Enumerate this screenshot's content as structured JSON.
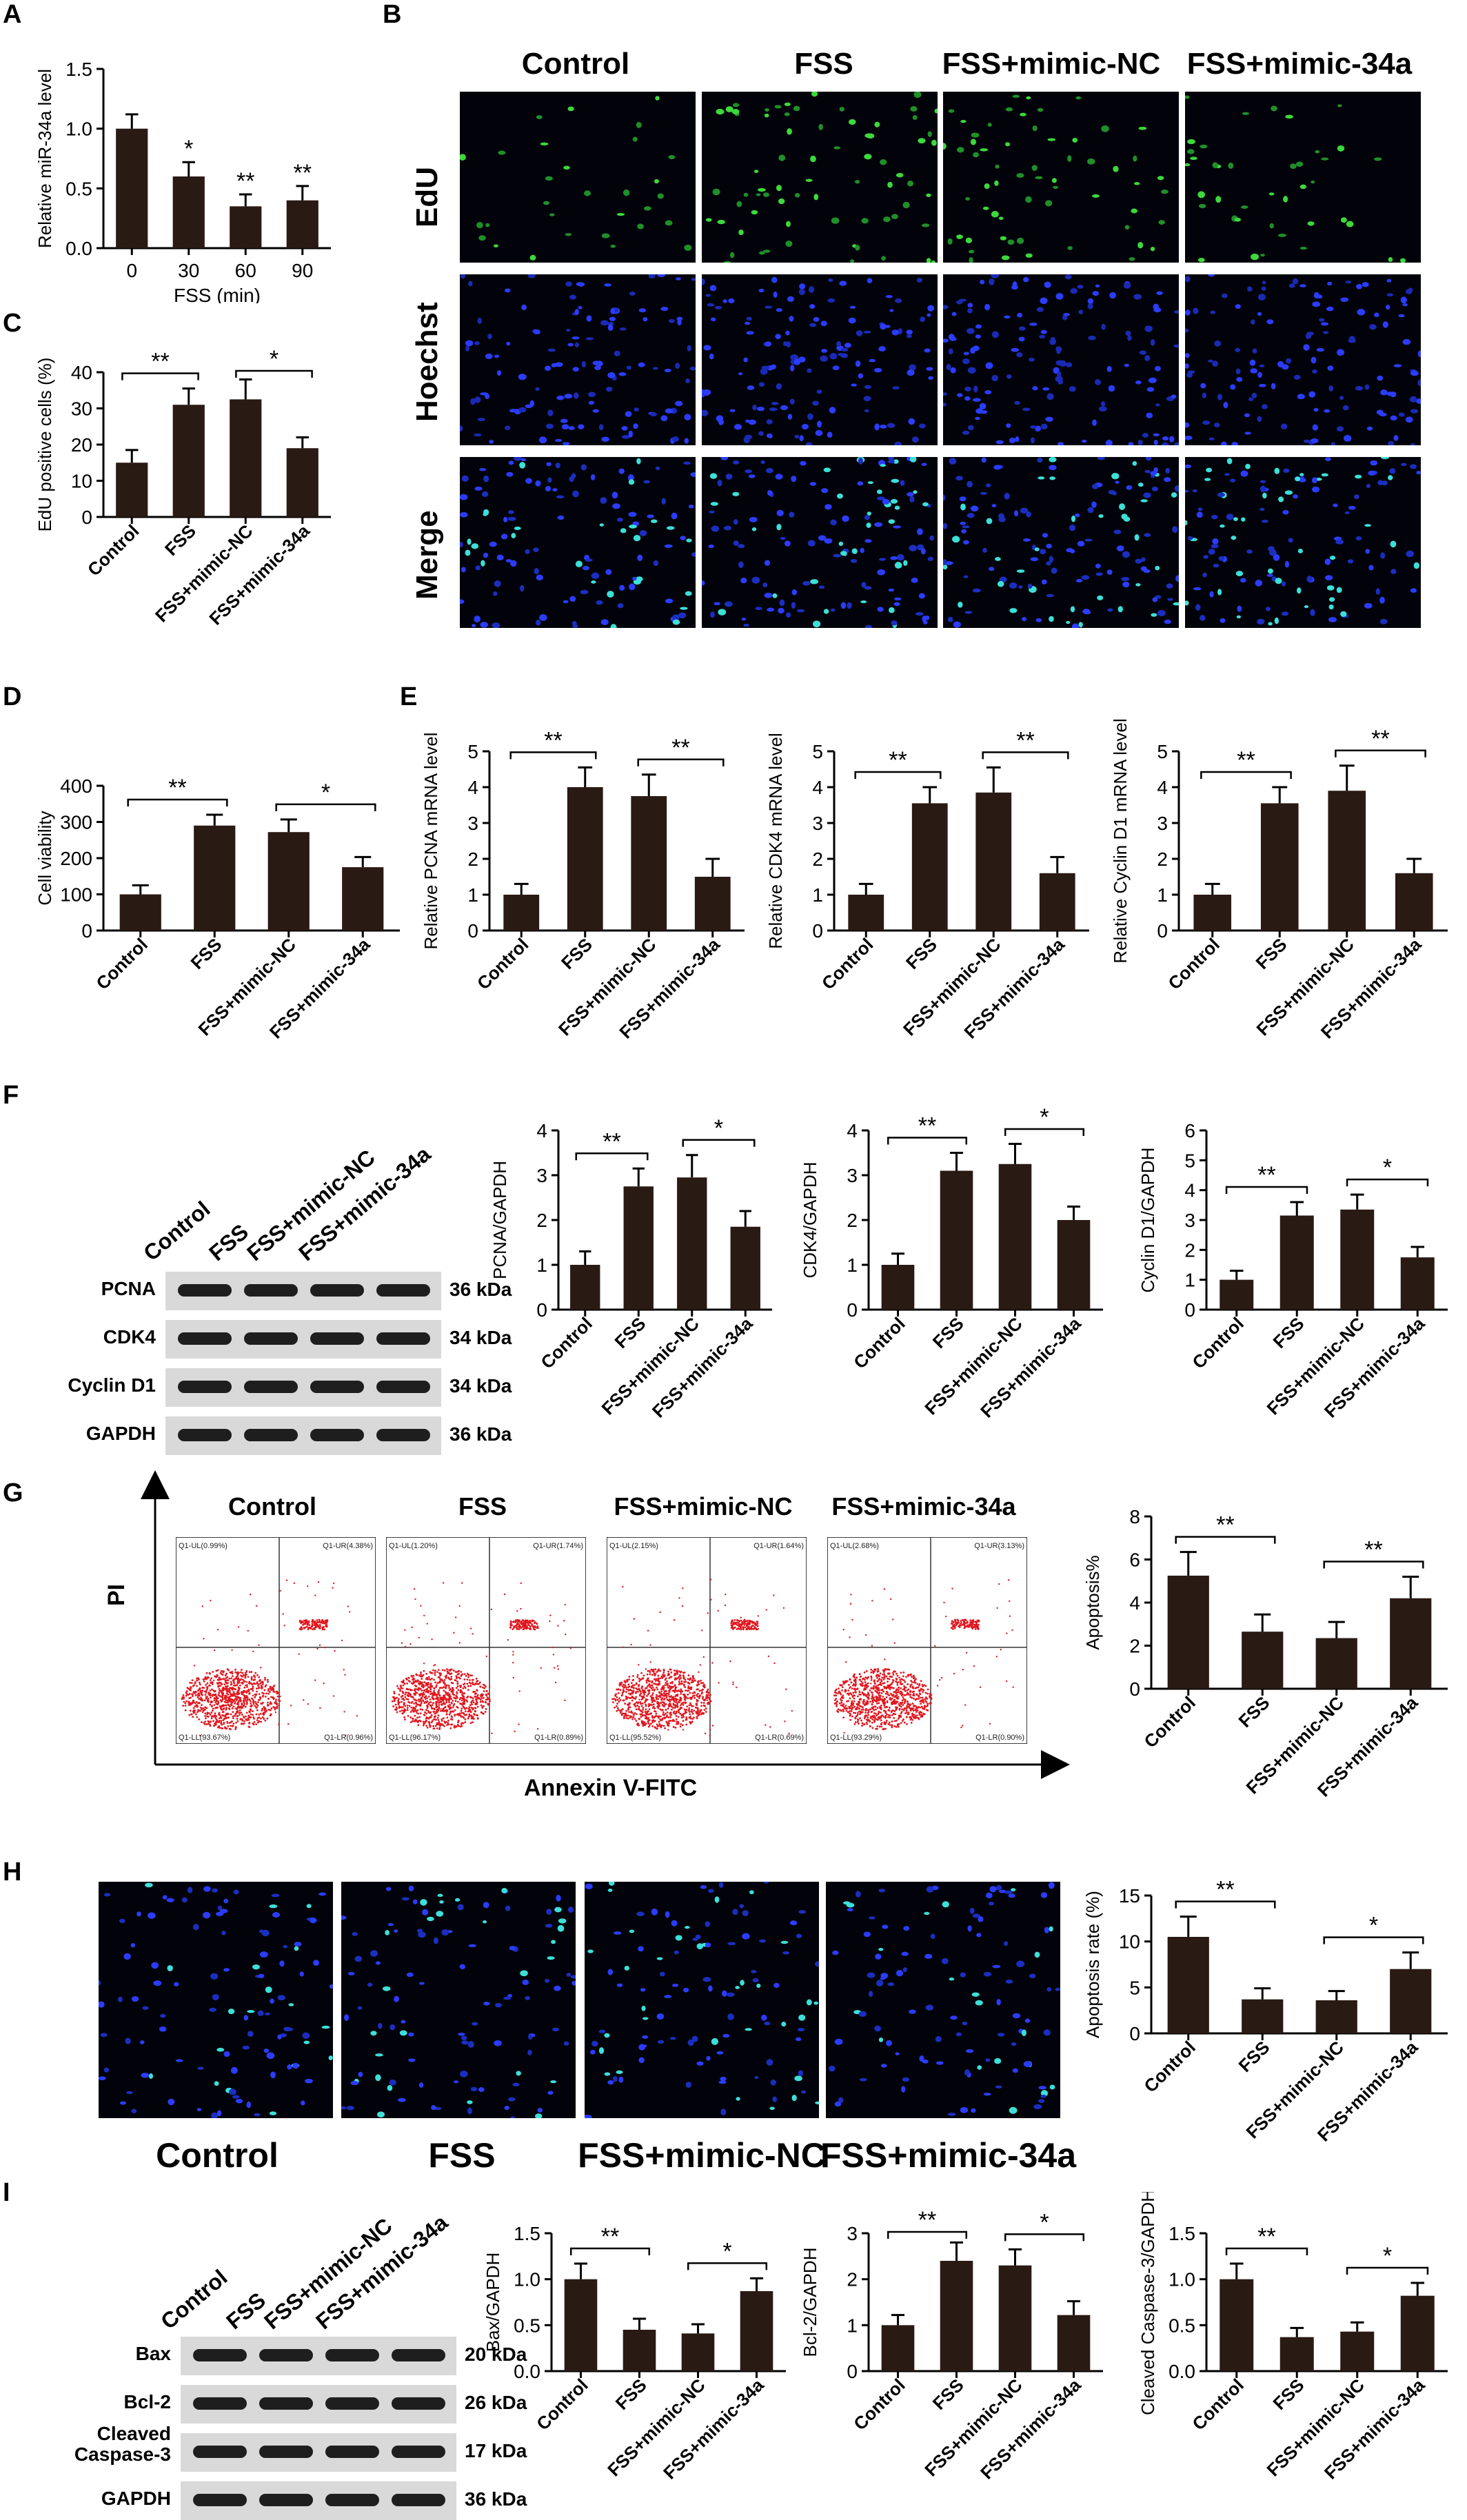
{
  "panels": {
    "A": "A",
    "B": "B",
    "C": "C",
    "D": "D",
    "E": "E",
    "F": "F",
    "G": "G",
    "H": "H",
    "I": "I"
  },
  "groups": [
    "Control",
    "FSS",
    "FSS+mimic-NC",
    "FSS+mimic-34a"
  ],
  "imaging_rows": [
    "EdU",
    "Hoechst",
    "Merge"
  ],
  "flow": {
    "x_axis": "Annexin V-FITC",
    "y_axis": "PI",
    "quadrants": [
      {
        "ul": "Q1-UL(0.99%)",
        "ur": "Q1-UR(4.38%)",
        "ll": "Q1-LL(93.67%)",
        "lr": "Q1-LR(0.96%)"
      },
      {
        "ul": "Q1-UL(1.20%)",
        "ur": "Q1-UR(1.74%)",
        "ll": "Q1-LL(96.17%)",
        "lr": "Q1-LR(0.89%)"
      },
      {
        "ul": "Q1-UL(2.15%)",
        "ur": "Q1-UR(1.64%)",
        "ll": "Q1-LL(95.52%)",
        "lr": "Q1-LR(0.69%)"
      },
      {
        "ul": "Q1-UL(2.68%)",
        "ur": "Q1-UR(3.13%)",
        "ll": "Q1-LL(93.29%)",
        "lr": "Q1-LR(0.90%)"
      }
    ]
  },
  "blots": {
    "F": [
      {
        "name": "PCNA",
        "kda": "36 kDa"
      },
      {
        "name": "CDK4",
        "kda": "34 kDa"
      },
      {
        "name": "Cyclin D1",
        "kda": "34 kDa"
      },
      {
        "name": "GAPDH",
        "kda": "36 kDa"
      }
    ],
    "I": [
      {
        "name": "Bax",
        "kda": "20 kDa"
      },
      {
        "name": "Bcl-2",
        "kda": "26 kDa"
      },
      {
        "name": "Cleaved\nCaspase-3",
        "kda": "17 kDa"
      },
      {
        "name": "GAPDH",
        "kda": "36 kDa"
      }
    ]
  },
  "chart_data": [
    {
      "id": "A",
      "type": "bar",
      "categories": [
        "0",
        "30",
        "60",
        "90"
      ],
      "values": [
        1.0,
        0.6,
        0.35,
        0.4
      ],
      "errors": [
        0.12,
        0.12,
        0.1,
        0.12
      ],
      "xlabel": "FSS (min)",
      "ylabel": "Relative miR-34a level",
      "ylim": [
        0,
        1.5
      ],
      "yticks": [
        "0.0",
        "0.5",
        "1.0",
        "1.5"
      ],
      "stars": [
        {
          "i": 1,
          "t": "*"
        },
        {
          "i": 2,
          "t": "**"
        },
        {
          "i": 3,
          "t": "**"
        }
      ],
      "brackets": []
    },
    {
      "id": "C",
      "type": "bar",
      "categories": [
        "Control",
        "FSS",
        "FSS+mimic-NC",
        "FSS+mimic-34a"
      ],
      "values": [
        15,
        31,
        32.5,
        19
      ],
      "errors": [
        3.5,
        4.5,
        5.5,
        3
      ],
      "xlabel": "",
      "ylabel": "EdU positive cells (%)",
      "ylim": [
        0,
        40
      ],
      "yticks": [
        "0",
        "10",
        "20",
        "30",
        "40"
      ],
      "stars": [],
      "brackets": [
        {
          "a": 0,
          "b": 1,
          "t": "**"
        },
        {
          "a": 2,
          "b": 3,
          "t": "*"
        }
      ]
    },
    {
      "id": "D",
      "type": "bar",
      "categories": [
        "Control",
        "FSS",
        "FSS+mimic-NC",
        "FSS+mimic-34a"
      ],
      "values": [
        100,
        290,
        272,
        175
      ],
      "errors": [
        25,
        30,
        35,
        28
      ],
      "xlabel": "",
      "ylabel": "Cell viability",
      "ylim": [
        0,
        400
      ],
      "yticks": [
        "0",
        "100",
        "200",
        "300",
        "400"
      ],
      "stars": [],
      "brackets": [
        {
          "a": 0,
          "b": 1,
          "t": "**"
        },
        {
          "a": 2,
          "b": 3,
          "t": "*"
        }
      ]
    },
    {
      "id": "E1",
      "type": "bar",
      "categories": [
        "Control",
        "FSS",
        "FSS+mimic-NC",
        "FSS+mimic-34a"
      ],
      "values": [
        1.0,
        4.0,
        3.75,
        1.5
      ],
      "errors": [
        0.3,
        0.55,
        0.6,
        0.5
      ],
      "xlabel": "",
      "ylabel": "Relative PCNA mRNA level",
      "ylim": [
        0,
        5
      ],
      "yticks": [
        "0",
        "1",
        "2",
        "3",
        "4",
        "5"
      ],
      "stars": [],
      "brackets": [
        {
          "a": 0,
          "b": 1,
          "t": "**"
        },
        {
          "a": 2,
          "b": 3,
          "t": "**"
        }
      ]
    },
    {
      "id": "E2",
      "type": "bar",
      "categories": [
        "Control",
        "FSS",
        "FSS+mimic-NC",
        "FSS+mimic-34a"
      ],
      "values": [
        1.0,
        3.55,
        3.85,
        1.6
      ],
      "errors": [
        0.3,
        0.45,
        0.7,
        0.45
      ],
      "xlabel": "",
      "ylabel": "Relative CDK4 mRNA level",
      "ylim": [
        0,
        5
      ],
      "yticks": [
        "0",
        "1",
        "2",
        "3",
        "4",
        "5"
      ],
      "stars": [],
      "brackets": [
        {
          "a": 0,
          "b": 1,
          "t": "**"
        },
        {
          "a": 2,
          "b": 3,
          "t": "**"
        }
      ]
    },
    {
      "id": "E3",
      "type": "bar",
      "categories": [
        "Control",
        "FSS",
        "FSS+mimic-NC",
        "FSS+mimic-34a"
      ],
      "values": [
        1.0,
        3.55,
        3.9,
        1.6
      ],
      "errors": [
        0.3,
        0.45,
        0.7,
        0.4
      ],
      "xlabel": "",
      "ylabel": "Relative Cyclin D1 mRNA level",
      "ylim": [
        0,
        5
      ],
      "yticks": [
        "0",
        "1",
        "2",
        "3",
        "4",
        "5"
      ],
      "stars": [],
      "brackets": [
        {
          "a": 0,
          "b": 1,
          "t": "**"
        },
        {
          "a": 2,
          "b": 3,
          "t": "**"
        }
      ]
    },
    {
      "id": "F1",
      "type": "bar",
      "categories": [
        "Control",
        "FSS",
        "FSS+mimic-NC",
        "FSS+mimic-34a"
      ],
      "values": [
        1.0,
        2.75,
        2.95,
        1.85
      ],
      "errors": [
        0.3,
        0.4,
        0.5,
        0.35
      ],
      "xlabel": "",
      "ylabel": "PCNA/GAPDH",
      "ylim": [
        0,
        4
      ],
      "yticks": [
        "0",
        "1",
        "2",
        "3",
        "4"
      ],
      "stars": [],
      "brackets": [
        {
          "a": 0,
          "b": 1,
          "t": "**"
        },
        {
          "a": 2,
          "b": 3,
          "t": "*"
        }
      ]
    },
    {
      "id": "F2",
      "type": "bar",
      "categories": [
        "Control",
        "FSS",
        "FSS+mimic-NC",
        "FSS+mimic-34a"
      ],
      "values": [
        1.0,
        3.1,
        3.25,
        2.0
      ],
      "errors": [
        0.25,
        0.4,
        0.45,
        0.3
      ],
      "xlabel": "",
      "ylabel": "CDK4/GAPDH",
      "ylim": [
        0,
        4
      ],
      "yticks": [
        "0",
        "1",
        "2",
        "3",
        "4"
      ],
      "stars": [],
      "brackets": [
        {
          "a": 0,
          "b": 1,
          "t": "**"
        },
        {
          "a": 2,
          "b": 3,
          "t": "*"
        }
      ]
    },
    {
      "id": "F3",
      "type": "bar",
      "categories": [
        "Control",
        "FSS",
        "FSS+mimic-NC",
        "FSS+mimic-34a"
      ],
      "values": [
        1.0,
        3.15,
        3.35,
        1.75
      ],
      "errors": [
        0.3,
        0.45,
        0.5,
        0.35
      ],
      "xlabel": "",
      "ylabel": "Cyclin D1/GAPDH",
      "ylim": [
        0,
        6
      ],
      "yticks": [
        "0",
        "1",
        "2",
        "3",
        "4",
        "5",
        "6"
      ],
      "stars": [],
      "brackets": [
        {
          "a": 0,
          "b": 1,
          "t": "**"
        },
        {
          "a": 2,
          "b": 3,
          "t": "*"
        }
      ]
    },
    {
      "id": "G",
      "type": "bar",
      "categories": [
        "Control",
        "FSS",
        "FSS+mimic-NC",
        "FSS+mimic-34a"
      ],
      "values": [
        5.25,
        2.65,
        2.35,
        4.2
      ],
      "errors": [
        1.1,
        0.8,
        0.75,
        1.0
      ],
      "xlabel": "",
      "ylabel": "Apoptosis%",
      "ylim": [
        0,
        8
      ],
      "yticks": [
        "0",
        "2",
        "4",
        "6",
        "8"
      ],
      "stars": [],
      "brackets": [
        {
          "a": 0,
          "b": 1,
          "t": "**"
        },
        {
          "a": 2,
          "b": 3,
          "t": "**"
        }
      ]
    },
    {
      "id": "H",
      "type": "bar",
      "categories": [
        "Control",
        "FSS",
        "FSS+mimic-NC",
        "FSS+mimic-34a"
      ],
      "values": [
        10.5,
        3.7,
        3.6,
        7.0
      ],
      "errors": [
        2.2,
        1.2,
        1.0,
        1.8
      ],
      "xlabel": "",
      "ylabel": "Apoptosis rate (%)",
      "ylim": [
        0,
        15
      ],
      "yticks": [
        "0",
        "5",
        "10",
        "15"
      ],
      "stars": [],
      "brackets": [
        {
          "a": 0,
          "b": 1,
          "t": "**"
        },
        {
          "a": 2,
          "b": 3,
          "t": "*"
        }
      ]
    },
    {
      "id": "I1",
      "type": "bar",
      "categories": [
        "Control",
        "FSS",
        "FSS+mimic-NC",
        "FSS+mimic-34a"
      ],
      "values": [
        1.0,
        0.45,
        0.41,
        0.87
      ],
      "errors": [
        0.17,
        0.12,
        0.1,
        0.14
      ],
      "xlabel": "",
      "ylabel": "Bax/GAPDH",
      "ylim": [
        0,
        1.5
      ],
      "yticks": [
        "0.0",
        "0.5",
        "1.0",
        "1.5"
      ],
      "stars": [],
      "brackets": [
        {
          "a": 0,
          "b": 1,
          "t": "**"
        },
        {
          "a": 2,
          "b": 3,
          "t": "*"
        }
      ]
    },
    {
      "id": "I2",
      "type": "bar",
      "categories": [
        "Control",
        "FSS",
        "FSS+mimic-NC",
        "FSS+mimic-34a"
      ],
      "values": [
        1.0,
        2.4,
        2.3,
        1.22
      ],
      "errors": [
        0.22,
        0.4,
        0.35,
        0.3
      ],
      "xlabel": "",
      "ylabel": "Bcl-2/GAPDH",
      "ylim": [
        0,
        3
      ],
      "yticks": [
        "0",
        "1",
        "2",
        "3"
      ],
      "stars": [],
      "brackets": [
        {
          "a": 0,
          "b": 1,
          "t": "**"
        },
        {
          "a": 2,
          "b": 3,
          "t": "*"
        }
      ]
    },
    {
      "id": "I3",
      "type": "bar",
      "categories": [
        "Control",
        "FSS",
        "FSS+mimic-NC",
        "FSS+mimic-34a"
      ],
      "values": [
        1.0,
        0.37,
        0.43,
        0.82
      ],
      "errors": [
        0.17,
        0.1,
        0.1,
        0.14
      ],
      "xlabel": "",
      "ylabel": "Cleaved Caspase-3/GAPDH",
      "ylim": [
        0,
        1.5
      ],
      "yticks": [
        "0.0",
        "0.5",
        "1.0",
        "1.5"
      ],
      "stars": [],
      "brackets": [
        {
          "a": 0,
          "b": 1,
          "t": "**"
        },
        {
          "a": 2,
          "b": 3,
          "t": "*"
        }
      ]
    }
  ]
}
